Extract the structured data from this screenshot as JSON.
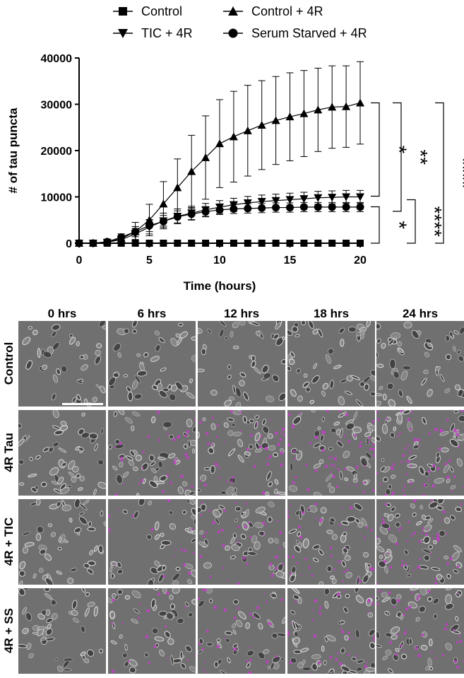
{
  "chart_data": {
    "type": "line",
    "xlabel": "Time (hours)",
    "ylabel": "# of tau puncta",
    "xlim": [
      0,
      20
    ],
    "ylim": [
      0,
      40000
    ],
    "x_ticks": [
      "0",
      "5",
      "10",
      "15",
      "20"
    ],
    "y_ticks": [
      "0",
      "10000",
      "20000",
      "30000",
      "40000"
    ],
    "legend_placement": "top",
    "series": [
      {
        "name": "Control",
        "marker": "square",
        "x": [
          0,
          1,
          2,
          3,
          4,
          5,
          6,
          7,
          8,
          9,
          10,
          11,
          12,
          13,
          14,
          15,
          16,
          17,
          18,
          19,
          20
        ],
        "values": [
          0,
          0,
          0,
          0,
          0,
          0,
          0,
          0,
          0,
          0,
          0,
          0,
          0,
          0,
          0,
          0,
          0,
          0,
          0,
          0,
          0
        ],
        "error": [
          0,
          0,
          0,
          0,
          0,
          0,
          0,
          0,
          0,
          0,
          0,
          0,
          0,
          0,
          0,
          0,
          0,
          0,
          0,
          0,
          0
        ]
      },
      {
        "name": "Control + 4R",
        "marker": "triangle-up",
        "x": [
          0,
          1,
          2,
          3,
          4,
          5,
          6,
          7,
          8,
          9,
          10,
          11,
          12,
          13,
          14,
          15,
          16,
          17,
          18,
          19,
          20
        ],
        "values": [
          0,
          0,
          300,
          1000,
          2500,
          5000,
          8500,
          12000,
          15500,
          18500,
          21500,
          23000,
          24300,
          25500,
          26500,
          27300,
          28000,
          28800,
          29400,
          29500,
          30300
        ],
        "error": [
          0,
          0,
          300,
          1000,
          2000,
          3400,
          4800,
          6200,
          7800,
          9000,
          9500,
          9800,
          9800,
          9600,
          9500,
          9500,
          9300,
          9000,
          8900,
          8800,
          8900
        ]
      },
      {
        "name": "TIC + 4R",
        "marker": "triangle-down",
        "x": [
          0,
          1,
          2,
          3,
          4,
          5,
          6,
          7,
          8,
          9,
          10,
          11,
          12,
          13,
          14,
          15,
          16,
          17,
          18,
          19,
          20
        ],
        "values": [
          0,
          0,
          200,
          800,
          2000,
          3500,
          4800,
          5800,
          6500,
          7200,
          7800,
          8300,
          8700,
          9000,
          9200,
          9400,
          9600,
          9800,
          9900,
          10000,
          10000
        ],
        "error": [
          0,
          0,
          200,
          700,
          1200,
          1500,
          1700,
          1600,
          1500,
          1400,
          1400,
          1400,
          1400,
          1400,
          1400,
          1400,
          1400,
          1400,
          1400,
          1400,
          1400
        ]
      },
      {
        "name": "Serum Starved + 4R",
        "marker": "circle",
        "x": [
          0,
          1,
          2,
          3,
          4,
          5,
          6,
          7,
          8,
          9,
          10,
          11,
          12,
          13,
          14,
          15,
          16,
          17,
          18,
          19,
          20
        ],
        "values": [
          0,
          0,
          300,
          1300,
          2500,
          3800,
          4700,
          5700,
          6300,
          6800,
          7200,
          7400,
          7500,
          7600,
          7700,
          7700,
          7800,
          7800,
          7800,
          7800,
          7800
        ],
        "error": [
          0,
          0,
          300,
          700,
          1100,
          1300,
          1300,
          1300,
          1200,
          1100,
          1000,
          1000,
          1000,
          1000,
          1000,
          1000,
          1000,
          1000,
          1000,
          1000,
          1000
        ]
      }
    ],
    "significance": [
      {
        "label": "*",
        "between": [
          "Control + 4R",
          "TIC + 4R"
        ]
      },
      {
        "label": "**",
        "between": [
          "Control + 4R",
          "Serum Starved + 4R"
        ]
      },
      {
        "label": "****",
        "between": [
          "Control + 4R",
          "Control"
        ]
      },
      {
        "label": "*",
        "between": [
          "TIC + 4R",
          "Control"
        ]
      },
      {
        "label": "****",
        "between": [
          "Serum Starved + 4R",
          "Control"
        ]
      }
    ]
  },
  "micrographs": {
    "columns": [
      "0 hrs",
      "6 hrs",
      "12 hrs",
      "18 hrs",
      "24 hrs"
    ],
    "rows": [
      "Control",
      "4R Tau",
      "4R + TIC",
      "4R + SS"
    ],
    "magenta_intensity": [
      [
        0,
        0,
        0,
        0,
        0
      ],
      [
        0,
        0.5,
        0.8,
        0.9,
        1.0
      ],
      [
        0,
        0.3,
        0.6,
        0.7,
        0.8
      ],
      [
        0,
        0.3,
        0.5,
        0.6,
        0.6
      ]
    ],
    "colors": {
      "background": "#707070",
      "cell_bright": "#e6e6e6",
      "cell_dark": "#3c3c3c",
      "puncta": "#c23fc5"
    }
  }
}
